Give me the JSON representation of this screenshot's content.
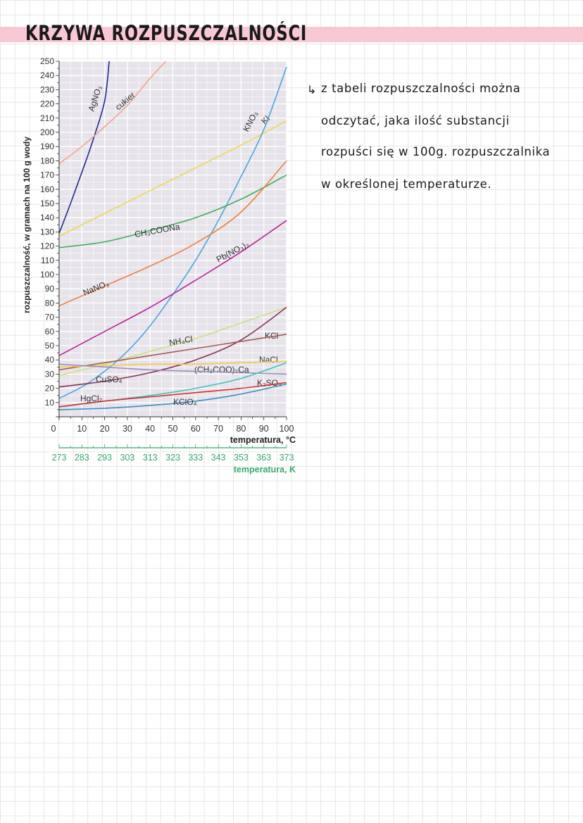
{
  "page": {
    "title": "KRZYWA ROZPUSZCZALNOŚCI",
    "note_lines": [
      "z tabeli rozpuszczalności można",
      "odczytać, jaka ilość substancji",
      "rozpuści się w 100g. rozpuszczalnika",
      "w określonej temperaturze."
    ],
    "note_icon": "arrow-icon"
  },
  "chart_data": {
    "type": "line",
    "ylabel": "rozpuszczalność, w gramach na 100 g wody",
    "xlabel": "temperatura, °C",
    "x2label": "temperatura, K",
    "xlim": [
      0,
      100
    ],
    "ylim": [
      0,
      250
    ],
    "grid": true,
    "x_ticks": [
      0,
      10,
      20,
      30,
      40,
      50,
      60,
      70,
      80,
      90,
      100
    ],
    "x2_ticks": [
      273,
      283,
      293,
      303,
      313,
      323,
      333,
      343,
      353,
      363,
      373
    ],
    "y_ticks": [
      10,
      20,
      30,
      40,
      50,
      60,
      70,
      80,
      90,
      100,
      110,
      120,
      130,
      140,
      150,
      160,
      170,
      180,
      190,
      200,
      210,
      220,
      230,
      240,
      250
    ],
    "colors": {
      "plot_bg": "#e6e3ea",
      "x2_axis": "#3aa76d",
      "axis": "#333333"
    },
    "series": [
      {
        "name": "AgNO3",
        "label": "AgNO₃",
        "color": "#1f2a8c",
        "x": [
          0,
          5,
          10,
          15,
          20,
          22
        ],
        "y": [
          129,
          150,
          172,
          195,
          222,
          250
        ]
      },
      {
        "name": "cukier",
        "label": "cukier",
        "color": "#f5a58c",
        "x": [
          0,
          10,
          20,
          30,
          40,
          47
        ],
        "y": [
          178,
          190,
          204,
          219,
          238,
          250
        ]
      },
      {
        "name": "KI",
        "label": "KI",
        "color": "#f0d64f",
        "x": [
          0,
          20,
          40,
          60,
          80,
          100
        ],
        "y": [
          127,
          143,
          159,
          175,
          191,
          208
        ]
      },
      {
        "name": "KNO3",
        "label": "KNO₃",
        "color": "#4aa6de",
        "x": [
          0,
          10,
          20,
          30,
          40,
          50,
          60,
          70,
          80,
          90,
          100
        ],
        "y": [
          13,
          21,
          32,
          46,
          64,
          86,
          110,
          138,
          169,
          202,
          246
        ]
      },
      {
        "name": "CH3COONa",
        "label": "CH₃COONa",
        "color": "#3cae58",
        "x": [
          0,
          20,
          40,
          60,
          80,
          100
        ],
        "y": [
          119,
          123,
          131,
          140,
          153,
          170
        ]
      },
      {
        "name": "NaNO3",
        "label": "NaNO₃",
        "color": "#f07f3c",
        "x": [
          0,
          20,
          40,
          60,
          80,
          100
        ],
        "y": [
          78,
          92,
          106,
          122,
          144,
          180
        ]
      },
      {
        "name": "Pb(NO3)2",
        "label": "Pb(NO₃)₂",
        "color": "#c0209c",
        "x": [
          0,
          20,
          40,
          60,
          80,
          100
        ],
        "y": [
          43,
          60,
          77,
          96,
          116,
          138
        ]
      },
      {
        "name": "NH4Cl",
        "label": "NH₄Cl",
        "color": "#cfe07c",
        "x": [
          0,
          20,
          40,
          60,
          80,
          100
        ],
        "y": [
          29,
          37,
          46,
          55,
          66,
          77
        ]
      },
      {
        "name": "KCl",
        "label": "KCl",
        "color": "#8a3256",
        "x": [
          0,
          20,
          40,
          60,
          80,
          100
        ],
        "y": [
          21,
          25,
          31,
          40,
          54,
          77
        ]
      },
      {
        "name": "NaCl",
        "label": "NaCl",
        "color": "#a65c4e",
        "x": [
          0,
          20,
          40,
          60,
          80,
          100
        ],
        "y": [
          33,
          38,
          43,
          48,
          53,
          58
        ]
      },
      {
        "name": "(CH3COO)2Ca",
        "label": "(CH₃COO)₂Ca",
        "color": "#f5c846",
        "x": [
          0,
          20,
          40,
          60,
          80,
          100
        ],
        "y": [
          35,
          36,
          37,
          37,
          38,
          39
        ]
      },
      {
        "name": "CuSO4",
        "label": "CuSO₄",
        "color": "#9b8ec2",
        "x": [
          0,
          20,
          40,
          60,
          80,
          100
        ],
        "y": [
          37,
          35,
          33,
          32,
          31,
          30
        ]
      },
      {
        "name": "K2SO4",
        "label": "K₂SO₄",
        "color": "#3cc3c0",
        "x": [
          0,
          20,
          40,
          60,
          80,
          100
        ],
        "y": [
          7,
          11,
          15,
          20,
          27,
          38
        ]
      },
      {
        "name": "HgCl2",
        "label": "HgCl₂",
        "color": "#d83030",
        "x": [
          0,
          20,
          40,
          60,
          80,
          100
        ],
        "y": [
          7,
          11,
          14,
          17,
          20,
          24
        ]
      },
      {
        "name": "KClO4",
        "label": "KClO₄",
        "color": "#3c8fc2",
        "x": [
          0,
          20,
          40,
          60,
          80,
          100
        ],
        "y": [
          5,
          6,
          8,
          11,
          16,
          23
        ]
      }
    ]
  }
}
